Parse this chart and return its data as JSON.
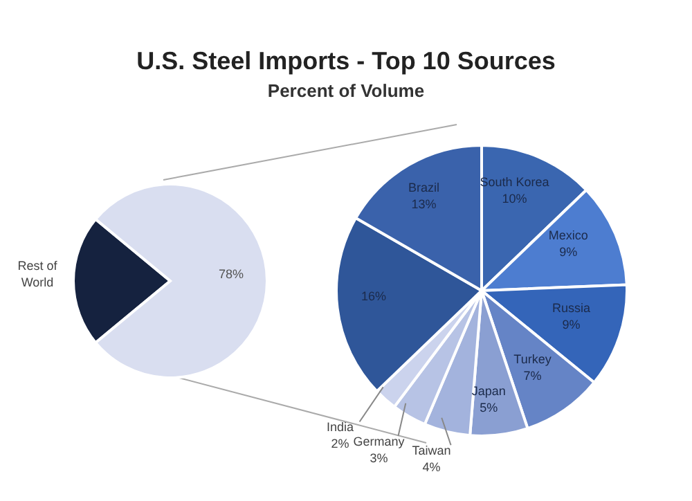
{
  "chart_data": [
    {
      "type": "pie",
      "title": "U.S. Steel Imports - Top 10 Sources",
      "categories": [
        "Rest of World",
        null
      ],
      "values": [
        22,
        78
      ],
      "value_labels": [
        null,
        "78%"
      ],
      "colors": [
        "#15223f",
        "#d9def0"
      ]
    },
    {
      "type": "pie",
      "subtitle": "Percent of Volume",
      "categories": [
        "South Korea",
        "Mexico",
        "Russia",
        "Turkey",
        "Japan",
        "Taiwan",
        "Germany",
        "India",
        null,
        "Brazil"
      ],
      "values": [
        10,
        9,
        9,
        7,
        5,
        4,
        3,
        2,
        16,
        13
      ],
      "value_labels": [
        "10%",
        "9%",
        "9%",
        "7%",
        "5%",
        "4%",
        "3%",
        "2%",
        "16%",
        "13%"
      ],
      "colors": [
        "#3a66b0",
        "#4d7dd0",
        "#3465b9",
        "#6584c6",
        "#8a9fd2",
        "#a3b3dd",
        "#b7c3e5",
        "#cbd3ed",
        "#2f5699",
        "#3a62ab"
      ]
    }
  ]
}
